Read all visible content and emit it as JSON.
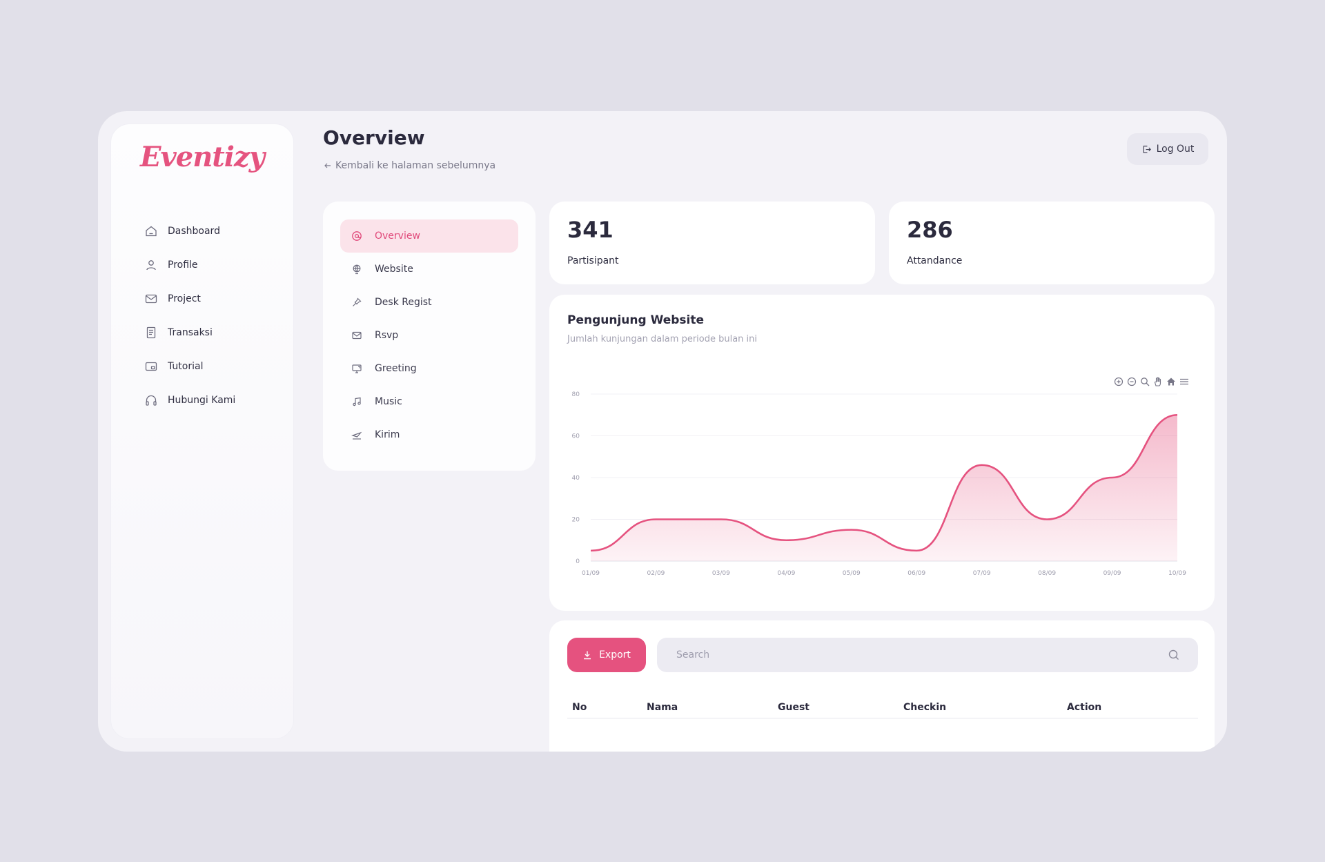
{
  "app": {
    "logo": "Eventizy",
    "accent": "#e5527f"
  },
  "sidebar": {
    "items": [
      {
        "label": "Dashboard",
        "icon": "home-icon"
      },
      {
        "label": "Profile",
        "icon": "user-icon"
      },
      {
        "label": "Project",
        "icon": "mail-icon"
      },
      {
        "label": "Transaksi",
        "icon": "receipt-icon"
      },
      {
        "label": "Tutorial",
        "icon": "tutorial-icon"
      },
      {
        "label": "Hubungi Kami",
        "icon": "headphones-icon"
      }
    ]
  },
  "header": {
    "title": "Overview",
    "back_label": "Kembali ke halaman sebelumnya",
    "logout_label": "Log Out"
  },
  "submenu": {
    "items": [
      {
        "label": "Overview",
        "icon": "at-icon",
        "active": true
      },
      {
        "label": "Website",
        "icon": "globe-icon"
      },
      {
        "label": "Desk Regist",
        "icon": "pin-icon"
      },
      {
        "label": "Rsvp",
        "icon": "mail-icon"
      },
      {
        "label": "Greeting",
        "icon": "monitor-icon"
      },
      {
        "label": "Music",
        "icon": "music-icon"
      },
      {
        "label": "Kirim",
        "icon": "send-icon"
      }
    ]
  },
  "stats": [
    {
      "value": "341",
      "label": "Partisipant"
    },
    {
      "value": "286",
      "label": "Attandance"
    }
  ],
  "chart": {
    "title": "Pengunjung Website",
    "subtitle": "Jumlah kunjungan dalam periode bulan ini",
    "toolbar": [
      "zoom-in-icon",
      "zoom-out-icon",
      "search-zoom-icon",
      "pan-hand-icon",
      "home-icon",
      "menu-icon"
    ]
  },
  "chart_data": {
    "type": "area",
    "categories": [
      "01/09",
      "02/09",
      "03/09",
      "04/09",
      "05/09",
      "06/09",
      "07/09",
      "08/09",
      "09/09",
      "10/09"
    ],
    "series": [
      {
        "values": [
          5,
          20,
          20,
          10,
          15,
          5,
          46,
          20,
          40,
          70
        ]
      }
    ],
    "ylim": [
      0,
      80
    ],
    "yticks": [
      0,
      20,
      40,
      60,
      80
    ],
    "grid": true,
    "color": "#e5527f"
  },
  "table": {
    "export_label": "Export",
    "search_placeholder": "Search",
    "columns": [
      "No",
      "Nama",
      "Guest",
      "Checkin",
      "Action"
    ]
  }
}
